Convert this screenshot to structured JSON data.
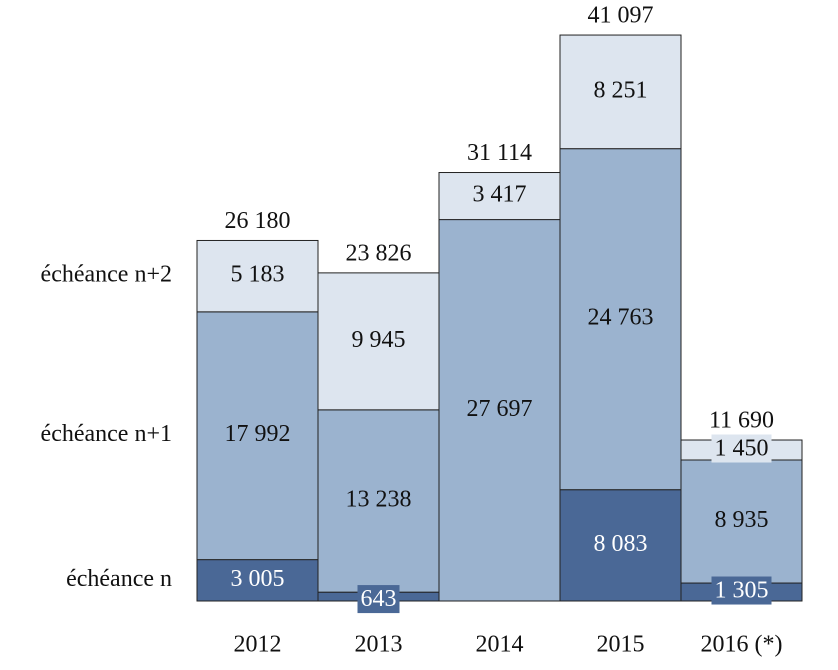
{
  "chart_data": {
    "type": "stacked-bar",
    "categories": [
      "2012",
      "2013",
      "2014",
      "2015",
      "2016 (*)"
    ],
    "series": [
      {
        "name": "échéance n",
        "color": "#4a6896",
        "label_color": "#ffffff",
        "values": [
          3005,
          643,
          null,
          8083,
          1305
        ],
        "value_labels": [
          "3 005",
          "643",
          null,
          "8 083",
          "1 305"
        ]
      },
      {
        "name": "échéance n+1",
        "color": "#9bb3cf",
        "label_color": "#111111",
        "values": [
          17992,
          13238,
          27697,
          24763,
          8935
        ],
        "value_labels": [
          "17 992",
          "13 238",
          "27 697",
          "24 763",
          "8 935"
        ]
      },
      {
        "name": "échéance n+2",
        "color": "#dde5ef",
        "label_color": "#111111",
        "values": [
          5183,
          9945,
          3417,
          8251,
          1450
        ],
        "value_labels": [
          "5 183",
          "9 945",
          "3 417",
          "8 251",
          "1 450"
        ]
      }
    ],
    "totals": [
      26180,
      23826,
      31114,
      41097,
      11690
    ],
    "total_labels": [
      "26 180",
      "23 826",
      "31 114",
      "41 097",
      "11 690"
    ],
    "ylim": [
      0,
      41100
    ]
  }
}
